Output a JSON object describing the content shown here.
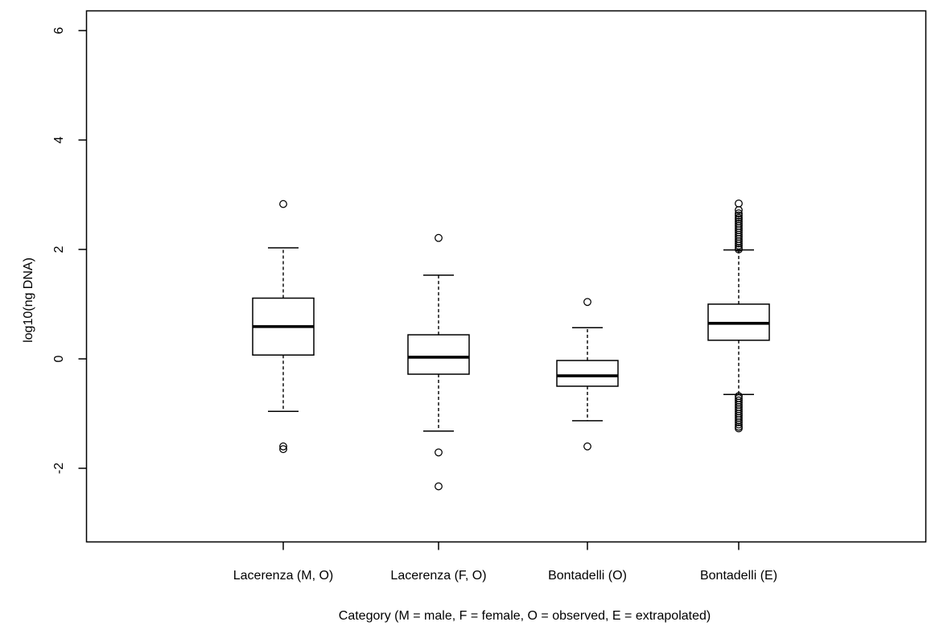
{
  "chart_data": {
    "type": "box",
    "title": "",
    "xlabel": "Category (M = male, F = female, O = observed, E = extrapolated)",
    "ylabel": "log10(ng DNA)",
    "ylim": [
      -3.3,
      6.3
    ],
    "yticks": [
      -2,
      0,
      2,
      4,
      6
    ],
    "ytick_labels": [
      "-2",
      "0",
      "2",
      "4",
      "6"
    ],
    "grid": false,
    "categories": [
      "Lacerenza (M, O)",
      "Lacerenza (F, O)",
      "Bontadelli (O)",
      "Bontadelli (E)"
    ],
    "boxes": [
      {
        "category": "Lacerenza (M, O)",
        "whisker_low": -0.96,
        "q1": 0.07,
        "median": 0.59,
        "q3": 1.11,
        "whisker_high": 2.03,
        "outliers": [
          2.83,
          -1.6,
          -1.65
        ]
      },
      {
        "category": "Lacerenza (F, O)",
        "whisker_low": -1.32,
        "q1": -0.28,
        "median": 0.03,
        "q3": 0.44,
        "whisker_high": 1.53,
        "outliers": [
          2.21,
          -1.71,
          -2.33
        ]
      },
      {
        "category": "Bontadelli (O)",
        "whisker_low": -1.13,
        "q1": -0.5,
        "median": -0.31,
        "q3": -0.03,
        "whisker_high": 0.57,
        "outliers": [
          1.04,
          -1.6
        ]
      },
      {
        "category": "Bontadelli (E)",
        "whisker_low": -0.65,
        "q1": 0.34,
        "median": 0.65,
        "q3": 1.0,
        "whisker_high": 1.99,
        "outliers": [
          2.84,
          2.72,
          2.66,
          2.62,
          2.58,
          2.55,
          2.51,
          2.47,
          2.43,
          2.39,
          2.35,
          2.31,
          2.27,
          2.23,
          2.19,
          2.15,
          2.11,
          2.07,
          2.03,
          2.0,
          -0.68,
          -0.72,
          -0.76,
          -0.8,
          -0.84,
          -0.88,
          -0.92,
          -0.96,
          -1.0,
          -1.04,
          -1.08,
          -1.12,
          -1.16,
          -1.2,
          -1.24,
          -1.27
        ]
      }
    ]
  }
}
